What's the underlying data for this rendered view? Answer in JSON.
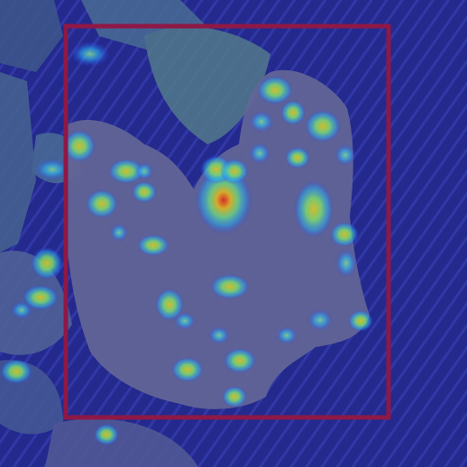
{
  "overlay": {
    "type": "heatmap-over-photo",
    "colormap": "jet",
    "box_color": "#8e1846",
    "box_visible": true
  },
  "scene": {
    "subject_icon": "diseased-leaf-photo",
    "background_color": "#2a2f8e",
    "leaf_color": "#6f7288",
    "foliage_color": "#4f7a86"
  }
}
